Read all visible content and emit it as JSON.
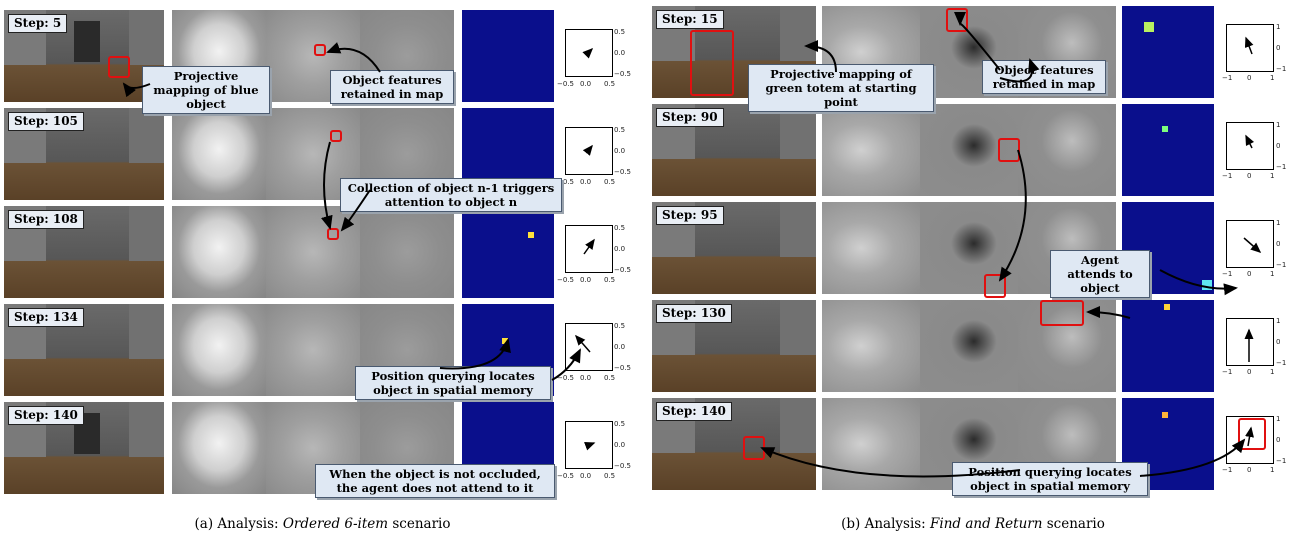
{
  "panel_a": {
    "steps": [
      "Step: 5",
      "Step: 105",
      "Step: 108",
      "Step: 134",
      "Step: 140"
    ],
    "ticks_x": [
      "−0.5",
      "0.0",
      "0.5"
    ],
    "ticks_y": [
      "0.5",
      "0.0",
      "−0.5"
    ],
    "notes": {
      "n1": "Projective mapping of blue object",
      "n2": "Object features retained in map",
      "n3": "Collection of object n-1 triggers attention to object n",
      "n4": "Position querying locates object in spatial memory",
      "n5": "When the object is not occluded, the agent does not attend to it"
    },
    "caption_prefix": "(a) Analysis: ",
    "caption_italic": "Ordered 6-item",
    "caption_suffix": " scenario"
  },
  "panel_b": {
    "steps": [
      "Step: 15",
      "Step: 90",
      "Step: 95",
      "Step: 130",
      "Step: 140"
    ],
    "ticks_x": [
      "−1",
      "0",
      "1"
    ],
    "ticks_y": [
      "1",
      "0",
      "−1"
    ],
    "notes": {
      "n1": "Projective mapping of green totem at starting point",
      "n2": "Object features retained in map",
      "n3": "Agent attends to object",
      "n4": "Position querying locates object in spatial memory"
    },
    "caption_prefix": "(b) Analysis: ",
    "caption_italic": "Find and Return",
    "caption_suffix": " scenario"
  },
  "colors": {
    "note_bg": "#dfe8f3",
    "highlight": "#e01010",
    "heatmap_bg": "#0a0f8c"
  }
}
